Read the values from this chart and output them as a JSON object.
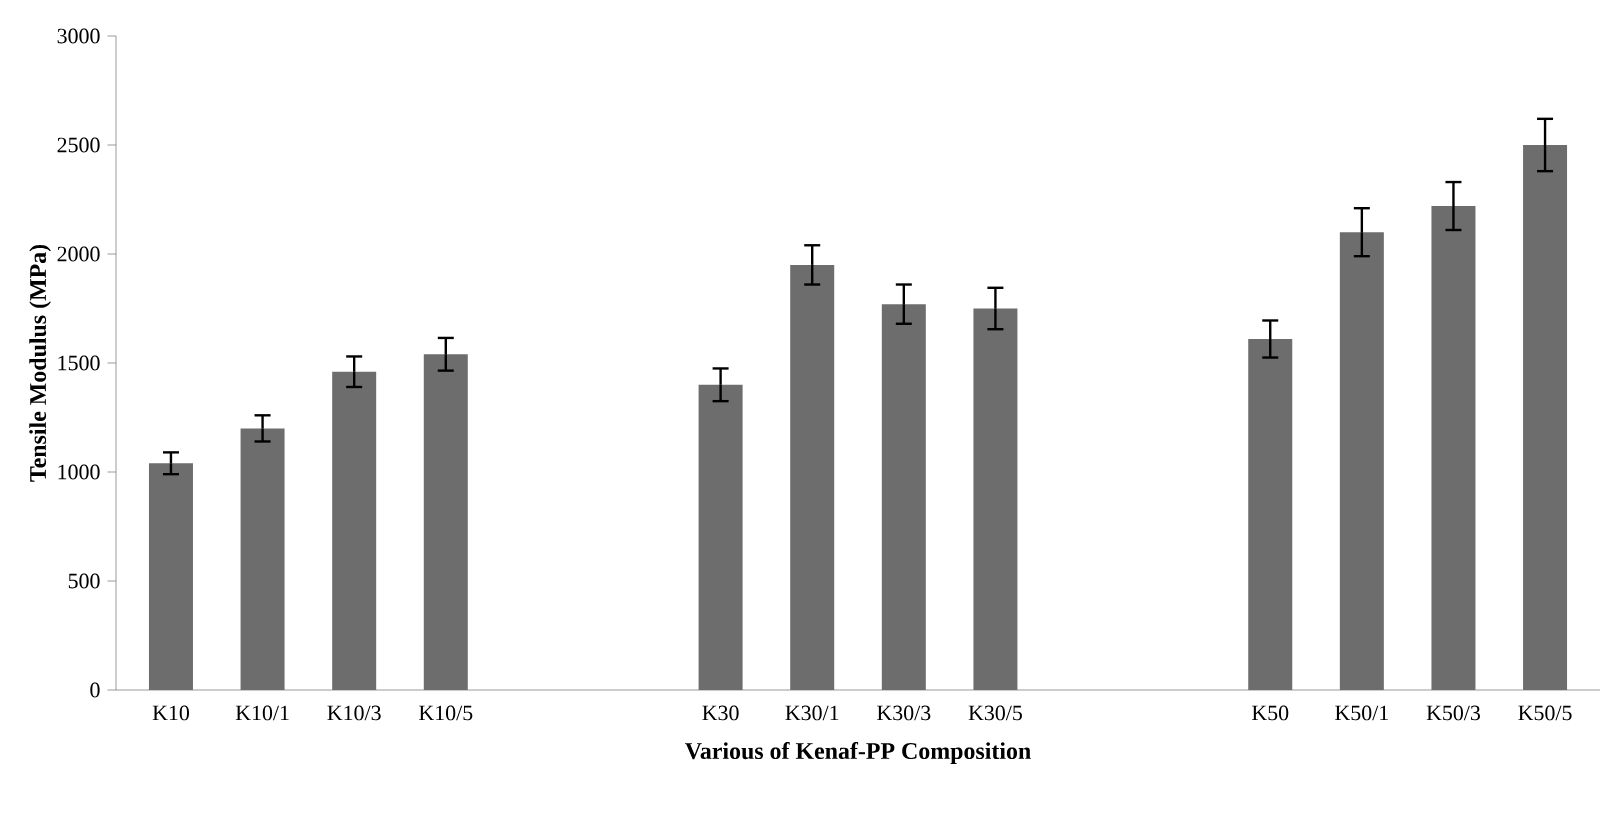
{
  "chart_data": {
    "type": "bar",
    "xlabel": "Various of Kenaf-PP Composition",
    "ylabel": "Tensile Modulus (MPa)",
    "categories": [
      "K10",
      "K10/1",
      "K10/3",
      "K10/5",
      null,
      null,
      "K30",
      "K30/1",
      "K30/3",
      "K30/5",
      null,
      null,
      "K50",
      "K50/1",
      "K50/3",
      "K50/5"
    ],
    "values": [
      1040,
      1200,
      1460,
      1540,
      null,
      null,
      1400,
      1950,
      1770,
      1750,
      null,
      null,
      1610,
      2100,
      2220,
      2500
    ],
    "errors": [
      50,
      60,
      70,
      75,
      null,
      null,
      75,
      90,
      90,
      95,
      null,
      null,
      85,
      110,
      110,
      120
    ],
    "color": "#6d6d6d",
    "ylim": [
      0,
      3000
    ],
    "yticks": [
      0,
      500,
      1000,
      1500,
      2000,
      2500,
      3000
    ],
    "grid": false
  }
}
